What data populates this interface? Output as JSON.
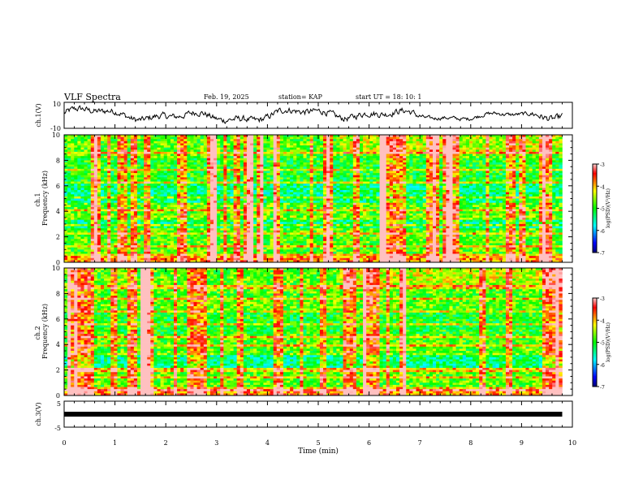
{
  "header": {
    "title": "VLF Spectra",
    "date": "Feb. 19, 2025",
    "station": "station= KAP",
    "start": "start  UT =   18: 10: 1"
  },
  "chart_data": [
    {
      "type": "line",
      "name": "ch1-waveform",
      "ylabel": "ch.1(V)",
      "ylim": [
        -10,
        10
      ],
      "yticks": [
        "10",
        "-10"
      ],
      "xlim": [
        0,
        10
      ]
    },
    {
      "type": "heatmap",
      "name": "ch1-spectrogram",
      "ylabel_top": "ch.1",
      "ylabel": "Frequency (kHz)",
      "ylim": [
        0,
        10
      ],
      "yticks": [
        "0",
        "2",
        "4",
        "6",
        "8",
        "10"
      ],
      "xlim": [
        0,
        10
      ],
      "colorbar": {
        "label": "log(PSD)(V²/Hz)",
        "range": [
          -7,
          -3
        ],
        "ticks": [
          "-3",
          "-4",
          "-5",
          "-6",
          "-7"
        ]
      }
    },
    {
      "type": "heatmap",
      "name": "ch2-spectrogram",
      "ylabel_top": "ch.2",
      "ylabel": "Frequency (kHz)",
      "ylim": [
        0,
        10
      ],
      "yticks": [
        "0",
        "2",
        "4",
        "6",
        "8",
        "10"
      ],
      "xlim": [
        0,
        10
      ],
      "colorbar": {
        "label": "log(PSD)(V²/Hz)",
        "range": [
          -7,
          -3
        ],
        "ticks": [
          "-3",
          "-4",
          "-5",
          "-6",
          "-7"
        ]
      }
    },
    {
      "type": "line",
      "name": "ch3-waveform",
      "ylabel": "ch.3(V)",
      "ylim": [
        -5,
        5
      ],
      "yticks": [
        "5",
        "-5"
      ],
      "xlim": [
        0,
        10
      ],
      "xlabel": "Time (min)",
      "xticks": [
        "0",
        "1",
        "2",
        "3",
        "4",
        "5",
        "6",
        "7",
        "8",
        "9",
        "10"
      ],
      "level": 0
    }
  ],
  "colors": {
    "colormap": [
      "#000080",
      "#0000ff",
      "#0080ff",
      "#00ffff",
      "#00ff80",
      "#00ff00",
      "#80ff00",
      "#ffff00",
      "#ff8000",
      "#ff0000",
      "#ffc0c0"
    ]
  }
}
